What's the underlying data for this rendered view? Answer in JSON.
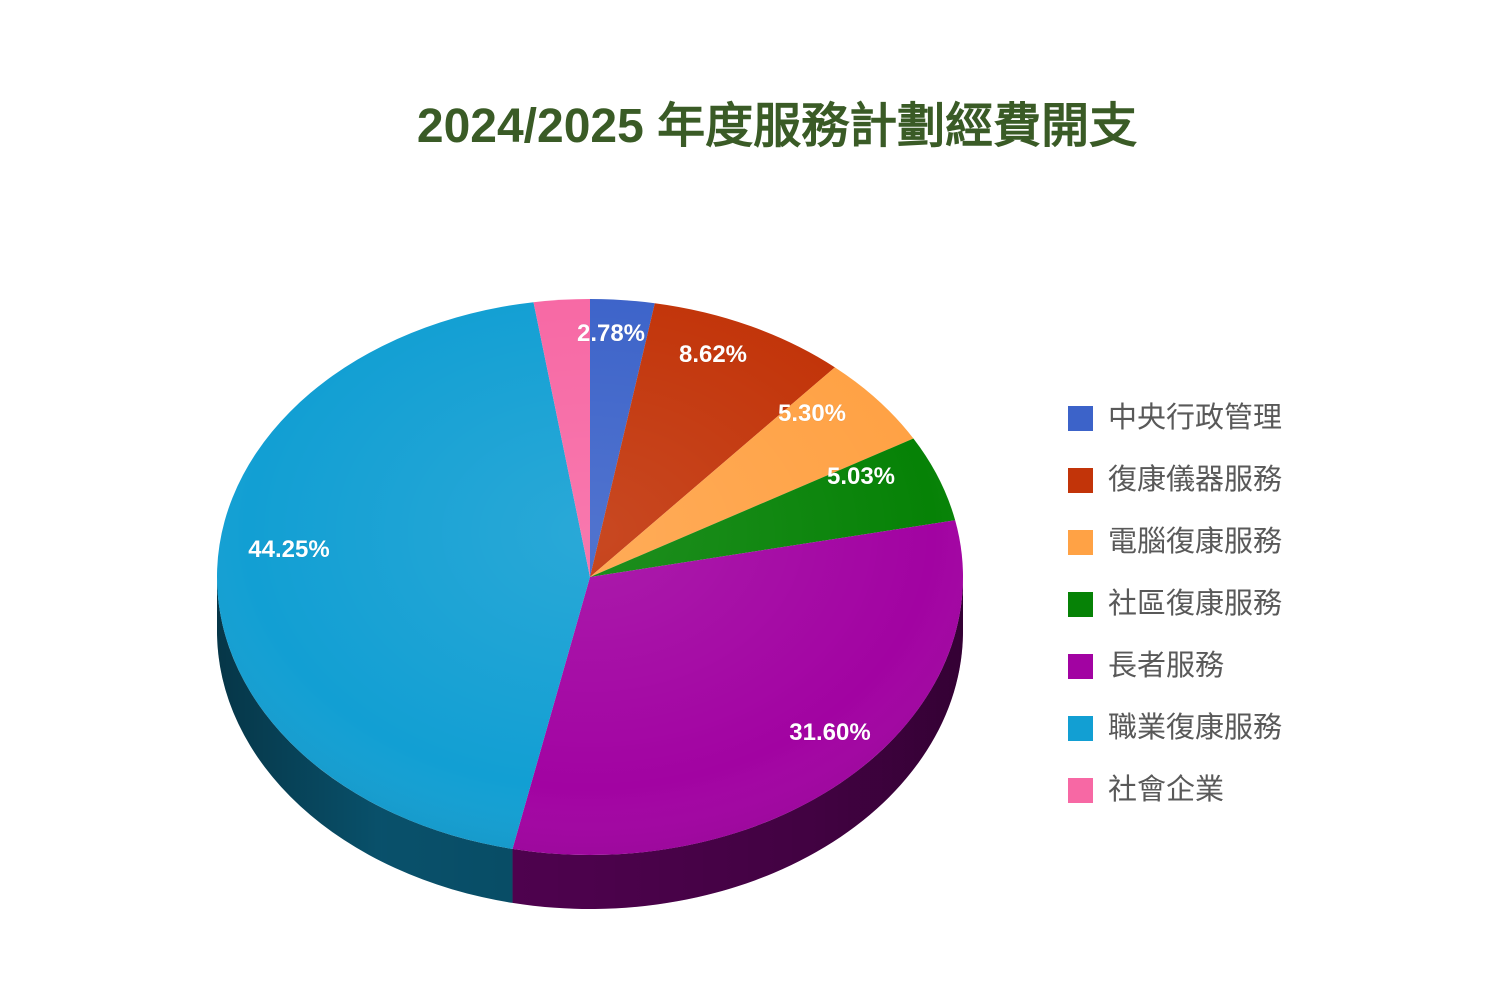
{
  "page": {
    "background": "#FFFFFF"
  },
  "chart_data": {
    "type": "pie",
    "style": "3d",
    "title": "2024/2025 年度服務計劃經費開支",
    "title_color": "#3A5B26",
    "data_label_color": "#FFFFFF",
    "legend": {
      "position": "right",
      "text_color": "#595959"
    },
    "series": [
      {
        "key": "central-admin",
        "label": "中央行政管理",
        "value": 2.78,
        "data_label": "2.78%",
        "color": "#3C63C9"
      },
      {
        "key": "rehab-equipment",
        "label": "復康儀器服務",
        "value": 8.62,
        "data_label": "8.62%",
        "color": "#C23409"
      },
      {
        "key": "computer-rehab",
        "label": "電腦復康服務",
        "value": 5.3,
        "data_label": "5.30%",
        "color": "#FFA245"
      },
      {
        "key": "community-rehab",
        "label": "社區復康服務",
        "value": 5.03,
        "data_label": "5.03%",
        "color": "#068206"
      },
      {
        "key": "elderly-services",
        "label": "長者服務",
        "value": 31.6,
        "data_label": "31.60%",
        "color": "#A203A2"
      },
      {
        "key": "vocational-rehab",
        "label": "職業復康服務",
        "value": 44.25,
        "data_label": "44.25%",
        "color": "#129FD3"
      },
      {
        "key": "social-enterprise",
        "label": "社會企業",
        "value": 2.42,
        "data_label": "",
        "color": "#F768A4"
      }
    ]
  }
}
